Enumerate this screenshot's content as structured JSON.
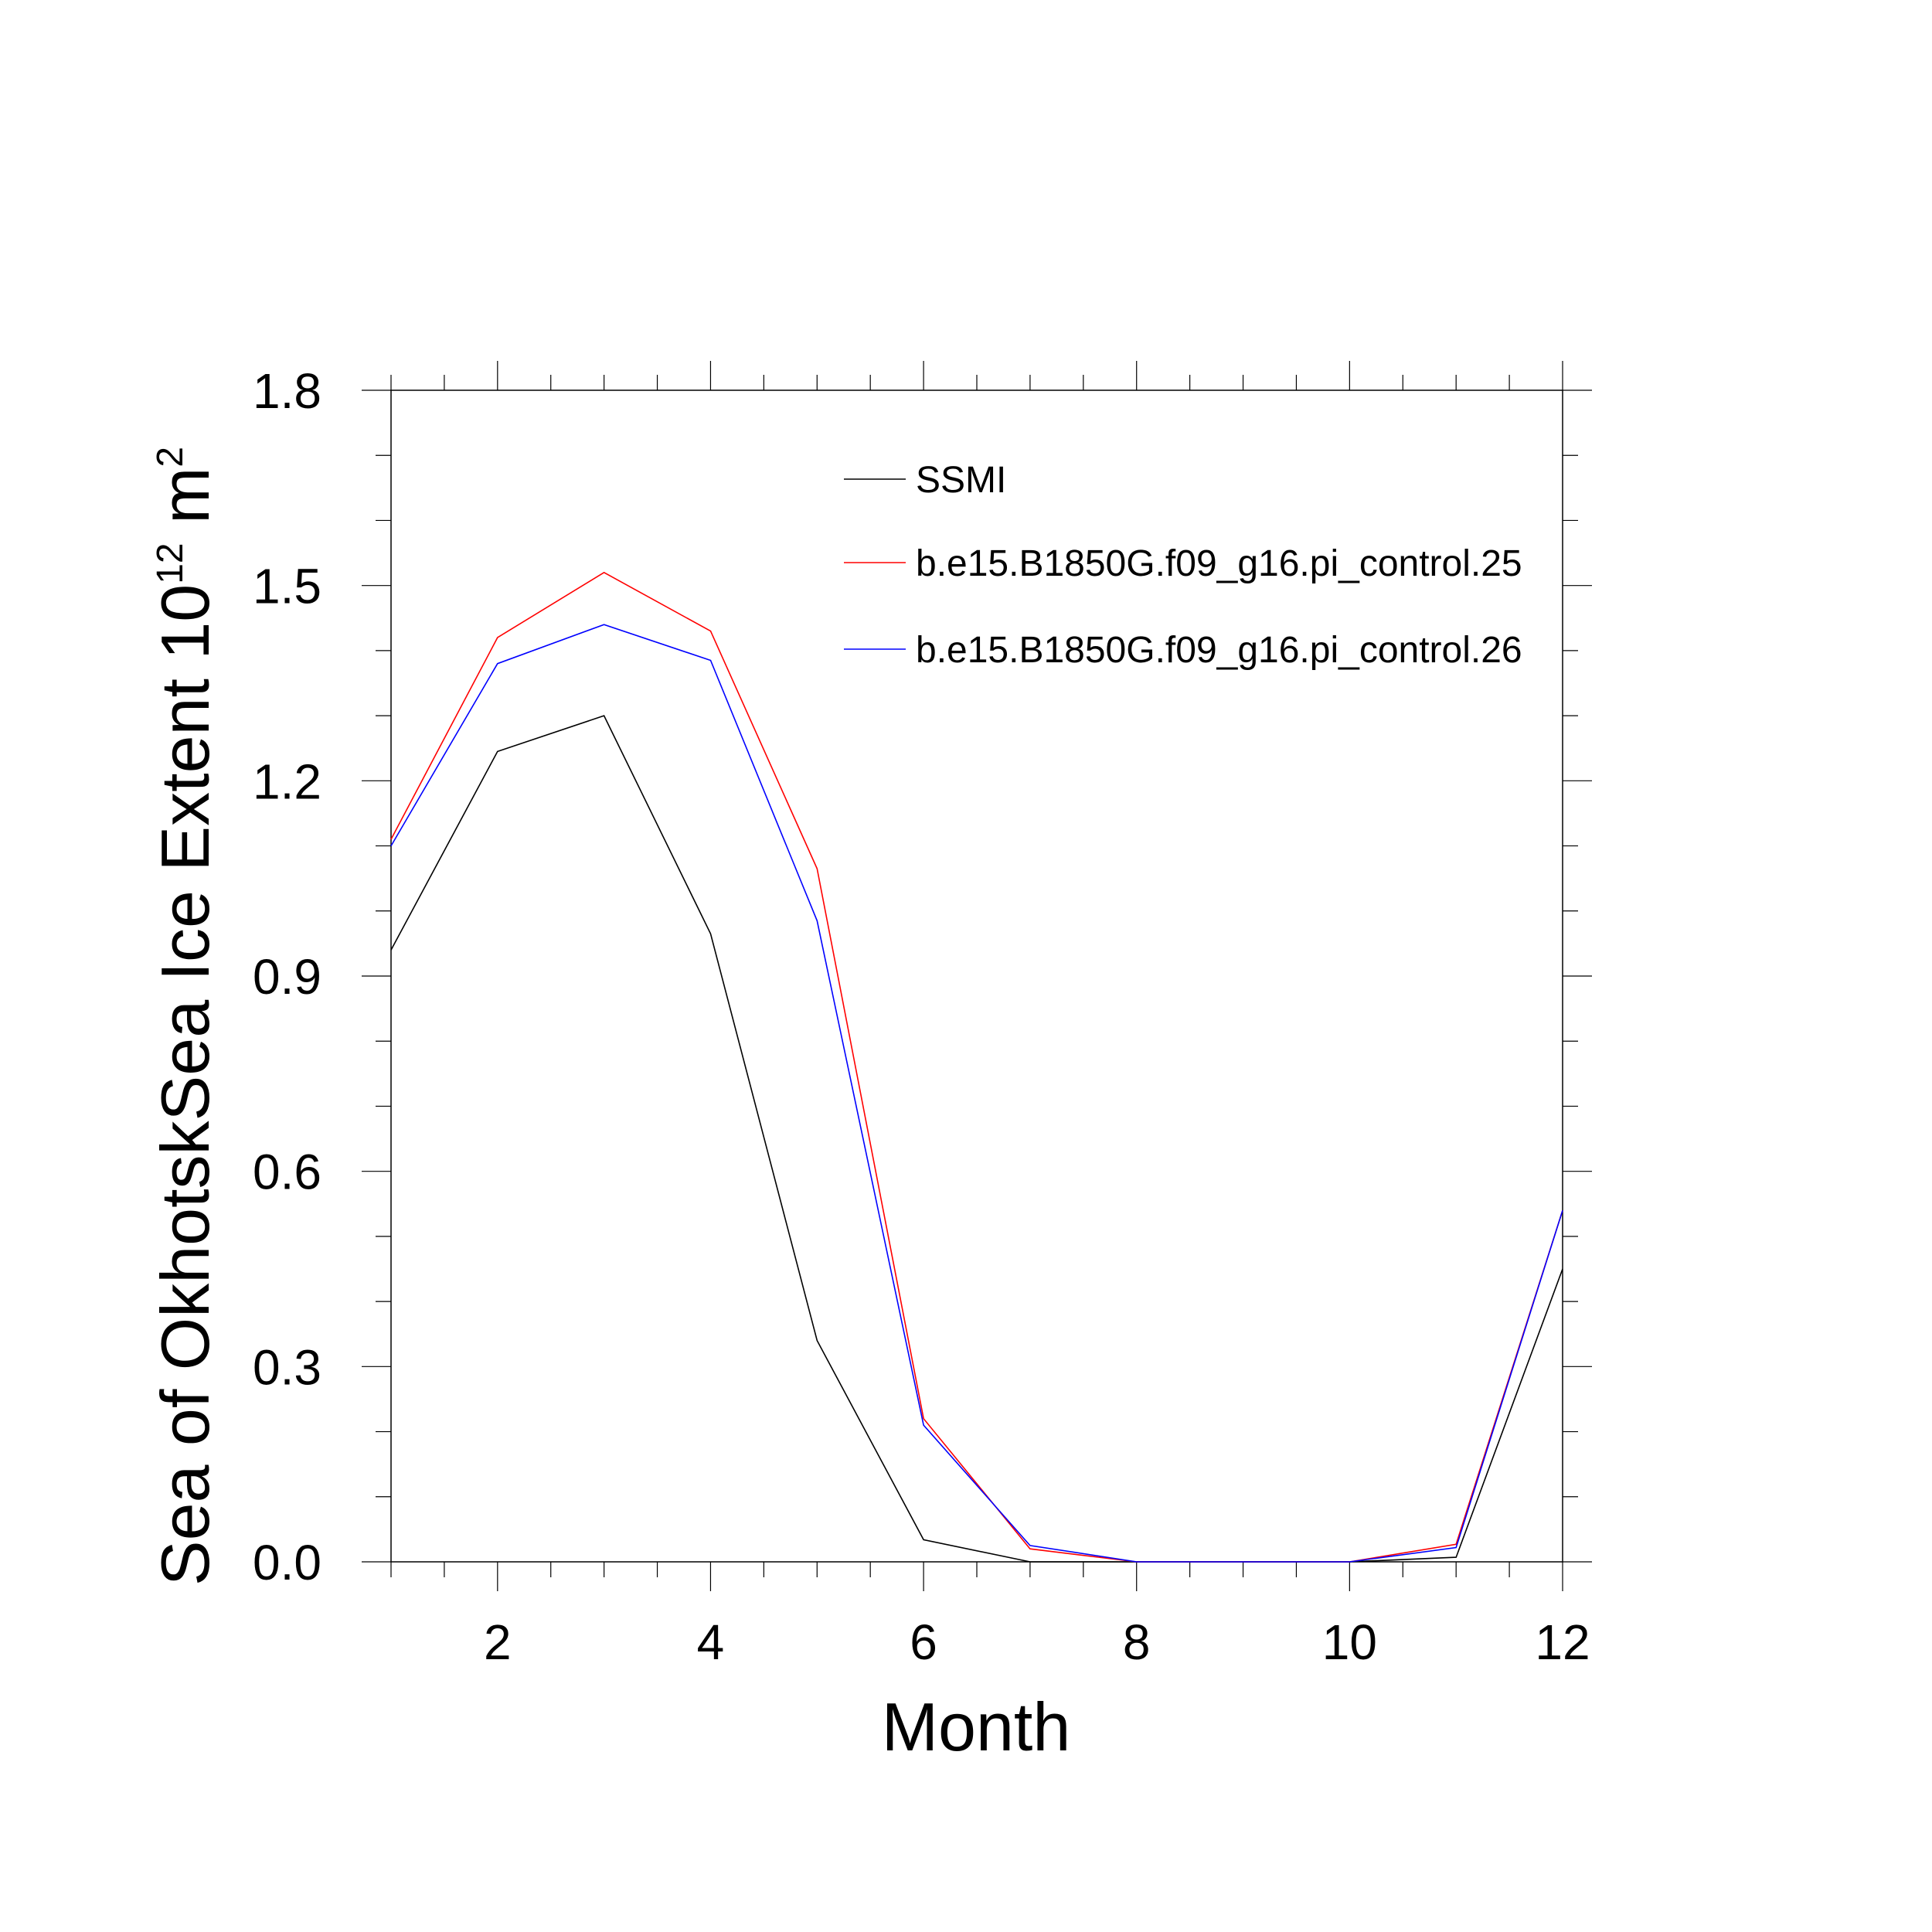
{
  "chart_data": {
    "type": "line",
    "xlabel": "Month",
    "ylabel": {
      "text": "Sea of OkhotskSea Ice Extent 10",
      "exponent": "12",
      "unit": " m",
      "unit_exponent": "2"
    },
    "xlim": [
      1,
      12
    ],
    "ylim": [
      0,
      1.8
    ],
    "x_ticks": [
      2,
      4,
      6,
      8,
      10,
      12
    ],
    "x_tick_labels": [
      "2",
      "4",
      "6",
      "8",
      "10",
      "12"
    ],
    "y_ticks": [
      0,
      0.3,
      0.6,
      0.9,
      1.2,
      1.5,
      1.8
    ],
    "y_tick_labels": [
      "0.0",
      "0.3",
      "0.6",
      "0.9",
      "1.2",
      "1.5",
      "1.8"
    ],
    "x_minor_step": 0.5,
    "y_minor_step": 0.1,
    "grid": false,
    "legend_position": "top-right inside plot",
    "x": [
      1,
      2,
      3,
      4,
      5,
      6,
      7,
      8,
      9,
      10,
      11,
      12
    ],
    "series": [
      {
        "name": "SSMI",
        "color": "#000000",
        "values": [
          0.94,
          1.245,
          1.3,
          0.965,
          0.34,
          0.034,
          0.0,
          0.0,
          0.0,
          0.0,
          0.007,
          0.45
        ]
      },
      {
        "name": "b.e15.B1850G.f09_g16.pi_control.25",
        "color": "#ff0000",
        "values": [
          1.11,
          1.42,
          1.52,
          1.43,
          1.065,
          0.22,
          0.02,
          0.0,
          0.0,
          0.0,
          0.027,
          0.54
        ]
      },
      {
        "name": "b.e15.B1850G.f09_g16.pi_control.26",
        "color": "#0000ff",
        "values": [
          1.1,
          1.38,
          1.44,
          1.385,
          0.985,
          0.21,
          0.025,
          0.0,
          0.0,
          0.0,
          0.022,
          0.54
        ]
      }
    ]
  }
}
